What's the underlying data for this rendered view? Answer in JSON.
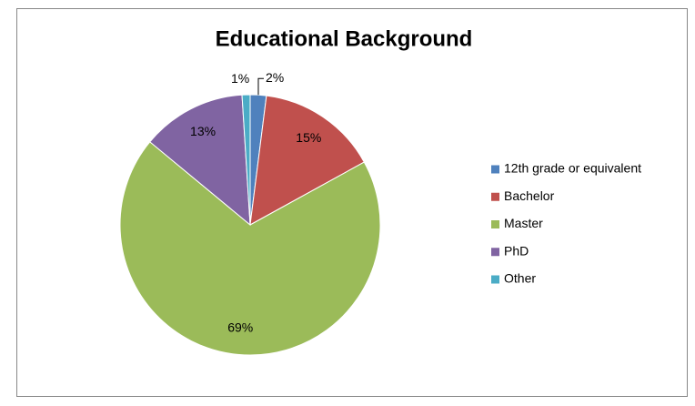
{
  "chart_data": {
    "type": "pie",
    "title": "Educational Background",
    "categories": [
      "12th grade or equivalent",
      "Bachelor",
      "Master",
      "PhD",
      "Other"
    ],
    "values": [
      2,
      15,
      69,
      13,
      1
    ],
    "value_labels": [
      "2%",
      "15%",
      "69%",
      "13%",
      "1%"
    ],
    "colors": [
      "#4f81bd",
      "#c0504d",
      "#9bbb59",
      "#8064a2",
      "#4bacc6"
    ],
    "legend": "right"
  }
}
